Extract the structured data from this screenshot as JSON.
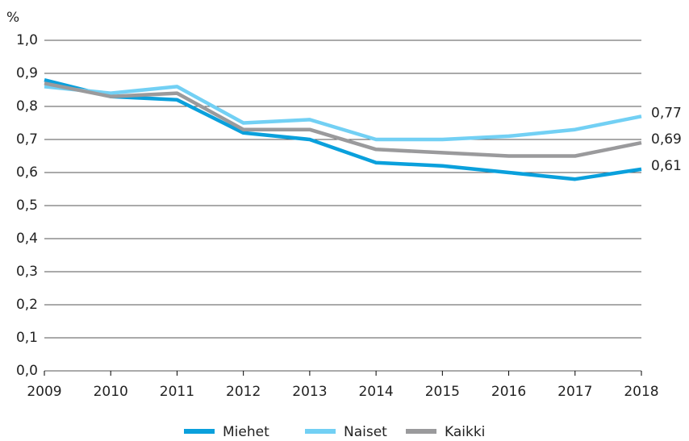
{
  "chart_data": {
    "type": "line",
    "y_label": "%",
    "x": [
      2009,
      2010,
      2011,
      2012,
      2013,
      2014,
      2015,
      2016,
      2017,
      2018
    ],
    "xlim": [
      2009,
      2018
    ],
    "xticks": [
      2009,
      2010,
      2011,
      2012,
      2013,
      2014,
      2015,
      2016,
      2017,
      2018
    ],
    "ylim": [
      0,
      1
    ],
    "yticks": [
      {
        "value": 0,
        "label": "0,0"
      },
      {
        "value": 0.1,
        "label": "0,1"
      },
      {
        "value": 0.2,
        "label": "0,2"
      },
      {
        "value": 0.3,
        "label": "0,3"
      },
      {
        "value": 0.4,
        "label": "0,4"
      },
      {
        "value": 0.5,
        "label": "0,5"
      },
      {
        "value": 0.6,
        "label": "0,6"
      },
      {
        "value": 0.7,
        "label": "0,7"
      },
      {
        "value": 0.8,
        "label": "0,8"
      },
      {
        "value": 0.9,
        "label": "0,9"
      },
      {
        "value": 1,
        "label": "1,0"
      }
    ],
    "grid": true,
    "legend": "bottom",
    "series": [
      {
        "name": "Miehet",
        "color": "#0aa0dc",
        "values": [
          0.88,
          0.83,
          0.82,
          0.72,
          0.7,
          0.63,
          0.62,
          0.6,
          0.58,
          0.61
        ],
        "value_labels": [
          null,
          null,
          null,
          null,
          null,
          null,
          null,
          null,
          null,
          "0,61"
        ]
      },
      {
        "name": "Naiset",
        "color": "#72d0f4",
        "values": [
          0.86,
          0.84,
          0.86,
          0.75,
          0.76,
          0.7,
          0.7,
          0.71,
          0.73,
          0.77
        ],
        "value_labels": [
          null,
          null,
          null,
          null,
          null,
          null,
          null,
          null,
          null,
          "0,77"
        ]
      },
      {
        "name": "Kaikki",
        "color": "#9a9a9c",
        "values": [
          0.87,
          0.83,
          0.84,
          0.73,
          0.73,
          0.67,
          0.66,
          0.65,
          0.65,
          0.69
        ],
        "value_labels": [
          null,
          null,
          null,
          null,
          null,
          null,
          null,
          null,
          null,
          "0,69"
        ]
      }
    ]
  }
}
